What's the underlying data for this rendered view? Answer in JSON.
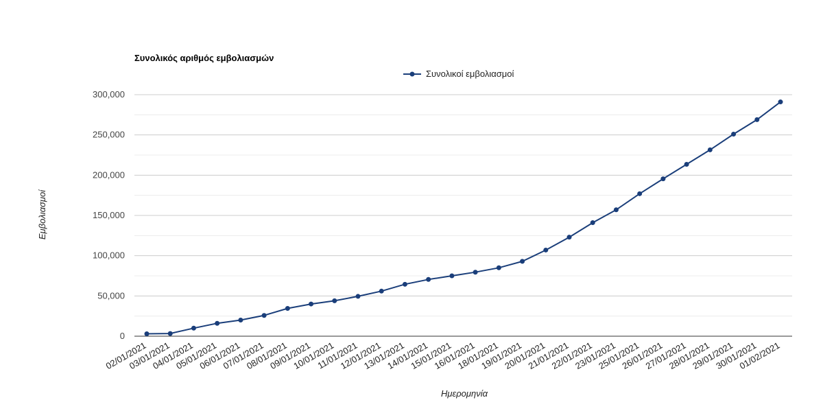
{
  "chart_data": {
    "type": "line",
    "title": "Συνολικός αριθμός εμβολιασμών",
    "xlabel": "Ημερομηνία",
    "ylabel": "Εμβολιασμοί",
    "ylim": [
      0,
      300000
    ],
    "y_ticks": [
      0,
      50000,
      100000,
      150000,
      200000,
      250000,
      300000
    ],
    "y_tick_labels": [
      "0",
      "50,000",
      "100,000",
      "150,000",
      "200,000",
      "250,000",
      "300,000"
    ],
    "grid": true,
    "legend_position": "top",
    "categories": [
      "02/01/2021",
      "03/01/2021",
      "04/01/2021",
      "05/01/2021",
      "06/01/2021",
      "07/01/2021",
      "08/01/2021",
      "09/01/2021",
      "10/01/2021",
      "11/01/2021",
      "12/01/2021",
      "13/01/2021",
      "14/01/2021",
      "15/01/2021",
      "16/01/2021",
      "18/01/2021",
      "19/01/2021",
      "20/01/2021",
      "21/01/2021",
      "22/01/2021",
      "23/01/2021",
      "25/01/2021",
      "26/01/2021",
      "27/01/2021",
      "28/01/2021",
      "29/01/2021",
      "30/01/2021",
      "01/02/2021"
    ],
    "series": [
      {
        "name": "Συνολικοί εμβολιασμοί",
        "color": "#1a3e7a",
        "values": [
          3000,
          3300,
          10000,
          16000,
          20000,
          25800,
          34500,
          40000,
          44000,
          49500,
          56000,
          64500,
          70500,
          75000,
          79500,
          85000,
          93000,
          107000,
          123000,
          141000,
          157000,
          177000,
          195500,
          213500,
          231500,
          251000,
          269000,
          291000
        ]
      }
    ]
  }
}
